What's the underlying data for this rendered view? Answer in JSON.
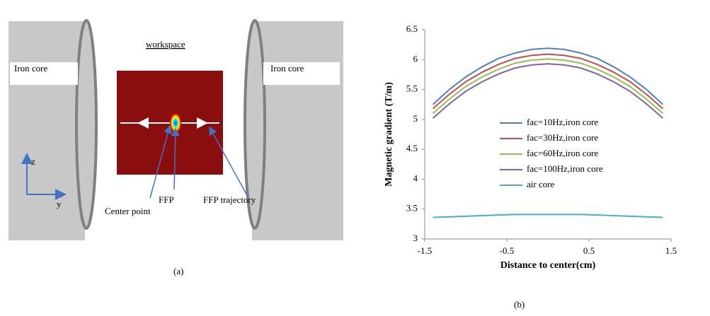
{
  "diagram": {
    "left_core": "Iron core",
    "right_core": "Iron core",
    "workspace": "workspace",
    "axis_z": "z",
    "axis_y": "y",
    "ffp": "FFP",
    "center_point": "Center point",
    "ffp_trajectory": "FFP trajectory"
  },
  "captions": {
    "a": "(a)",
    "b": "(b)"
  },
  "chart_data": {
    "type": "line",
    "xlabel": "Distance to center(cm)",
    "ylabel": "Magnetic gradient (T/m)",
    "x": [
      -1.4,
      -1.2,
      -1.0,
      -0.8,
      -0.6,
      -0.4,
      -0.2,
      0,
      0.2,
      0.4,
      0.6,
      0.8,
      1.0,
      1.2,
      1.4
    ],
    "series": [
      {
        "name": "fac=10Hz,iron core",
        "color": "#4f81bd",
        "values": [
          5.25,
          5.5,
          5.71,
          5.88,
          6.02,
          6.11,
          6.17,
          6.19,
          6.17,
          6.11,
          6.02,
          5.88,
          5.71,
          5.5,
          5.25
        ]
      },
      {
        "name": "fac=30Hz,iron core",
        "color": "#c0504d",
        "values": [
          5.18,
          5.42,
          5.63,
          5.79,
          5.92,
          6.02,
          6.07,
          6.09,
          6.07,
          6.02,
          5.92,
          5.79,
          5.63,
          5.42,
          5.18
        ]
      },
      {
        "name": "fac=60Hz,iron core",
        "color": "#9bbb59",
        "values": [
          5.1,
          5.34,
          5.55,
          5.71,
          5.84,
          5.94,
          5.99,
          6.01,
          5.99,
          5.94,
          5.84,
          5.71,
          5.55,
          5.34,
          5.1
        ]
      },
      {
        "name": "fac=100Hz,iron core",
        "color": "#8064a2",
        "values": [
          5.02,
          5.26,
          5.47,
          5.63,
          5.76,
          5.86,
          5.91,
          5.93,
          5.91,
          5.86,
          5.76,
          5.63,
          5.47,
          5.26,
          5.02
        ]
      },
      {
        "name": "air core",
        "color": "#4bacc6",
        "values": [
          3.36,
          3.37,
          3.38,
          3.39,
          3.4,
          3.41,
          3.41,
          3.41,
          3.41,
          3.41,
          3.4,
          3.39,
          3.38,
          3.37,
          3.36
        ]
      }
    ],
    "xlim": [
      -1.5,
      1.5
    ],
    "xticks": [
      -1.5,
      -0.5,
      0.5,
      1.5
    ],
    "ylim": [
      3,
      6.5
    ],
    "yticks": [
      3,
      3.5,
      4,
      4.5,
      5,
      5.5,
      6,
      6.5
    ]
  }
}
